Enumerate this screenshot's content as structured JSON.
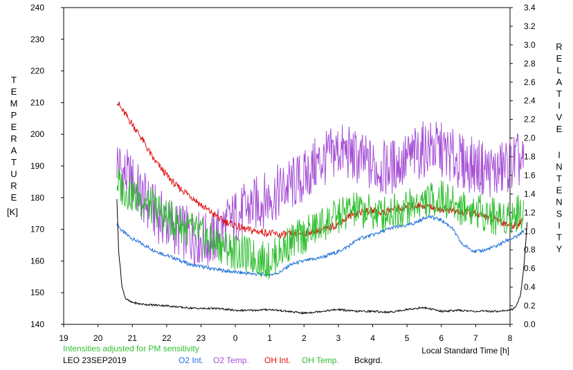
{
  "chart_data": {
    "type": "line",
    "left_axis_label": "TEMPERATURE",
    "left_axis_unit": "[K]",
    "right_axis_label": "RELATIVE INTENSITY",
    "xlabel": "Local Standard Time [h]",
    "note": "Intensities adjusted for PM sensitivity",
    "station": "LEO 23SEP2019",
    "x_range": [
      19,
      32
    ],
    "x_tick_values": [
      19,
      20,
      21,
      22,
      23,
      24,
      25,
      26,
      27,
      28,
      29,
      30,
      31,
      32
    ],
    "x_tick_labels": [
      "19",
      "20",
      "21",
      "22",
      "23",
      "0",
      "1",
      "2",
      "3",
      "4",
      "5",
      "6",
      "7",
      "8"
    ],
    "ylim_left": [
      140,
      240
    ],
    "y_left_ticks": [
      140,
      150,
      160,
      170,
      180,
      190,
      200,
      210,
      220,
      230,
      240
    ],
    "ylim_right": [
      0.0,
      3.4
    ],
    "y_right_ticks": [
      "0.0",
      "0.2",
      "0.4",
      "0.6",
      "0.8",
      "1.0",
      "1.2",
      "1.4",
      "1.6",
      "1.8",
      "2.0",
      "2.2",
      "2.4",
      "2.6",
      "2.8",
      "3.0",
      "3.2",
      "3.4"
    ],
    "grid": false,
    "series": [
      {
        "name": "O2 Int.",
        "axis": "right",
        "color": "#1e6fd9",
        "x": [
          20.55,
          20.7,
          21,
          21.3,
          21.6,
          22,
          22.3,
          22.7,
          23,
          23.3,
          23.6,
          24,
          24.3,
          24.6,
          25,
          25.3,
          25.6,
          26,
          26.3,
          26.6,
          27,
          27.3,
          27.6,
          28,
          28.3,
          28.6,
          29,
          29.3,
          29.6,
          30,
          30.3,
          30.6,
          31,
          31.3,
          31.6,
          31.9,
          32.2,
          32.4
        ],
        "y": [
          1.08,
          1.0,
          0.92,
          0.86,
          0.8,
          0.74,
          0.7,
          0.64,
          0.62,
          0.6,
          0.58,
          0.56,
          0.55,
          0.54,
          0.53,
          0.56,
          0.64,
          0.68,
          0.7,
          0.73,
          0.78,
          0.84,
          0.92,
          0.96,
          1.0,
          1.04,
          1.06,
          1.1,
          1.16,
          1.12,
          1.04,
          0.86,
          0.78,
          0.8,
          0.84,
          0.9,
          0.94,
          1.0
        ]
      },
      {
        "name": "O2 Temp.",
        "axis": "left",
        "color": "#a64fd6",
        "x": [
          20.55,
          20.7,
          21,
          21.3,
          21.6,
          22,
          22.3,
          22.7,
          23,
          23.3,
          23.6,
          24,
          24.3,
          24.6,
          25,
          25.3,
          25.6,
          26,
          26.3,
          26.6,
          27,
          27.3,
          27.6,
          28,
          28.3,
          28.6,
          29,
          29.3,
          29.6,
          30,
          30.3,
          30.6,
          31,
          31.3,
          31.6,
          31.9,
          32.2,
          32.4
        ],
        "y": [
          192,
          188,
          185,
          180,
          176,
          172,
          170,
          168,
          167,
          166,
          170,
          174,
          176,
          178,
          180,
          182,
          184,
          186,
          190,
          192,
          195,
          194,
          192,
          190,
          189,
          190,
          192,
          194,
          196,
          195,
          193,
          191,
          190,
          189,
          188,
          190,
          192,
          190
        ]
      },
      {
        "name": "OH Int.",
        "axis": "right",
        "color": "#e01010",
        "x": [
          20.55,
          20.7,
          21,
          21.3,
          21.6,
          22,
          22.3,
          22.7,
          23,
          23.3,
          23.6,
          24,
          24.3,
          24.6,
          25,
          25.3,
          25.6,
          26,
          26.3,
          26.6,
          27,
          27.3,
          27.6,
          28,
          28.3,
          28.6,
          29,
          29.3,
          29.6,
          30,
          30.3,
          30.6,
          31,
          31.3,
          31.6,
          31.9,
          32.2,
          32.4
        ],
        "y": [
          2.4,
          2.3,
          2.15,
          1.98,
          1.78,
          1.6,
          1.48,
          1.38,
          1.28,
          1.2,
          1.12,
          1.06,
          1.02,
          1.0,
          0.98,
          0.96,
          0.97,
          0.98,
          1.0,
          1.02,
          1.08,
          1.16,
          1.2,
          1.22,
          1.2,
          1.24,
          1.26,
          1.28,
          1.27,
          1.24,
          1.22,
          1.2,
          1.18,
          1.16,
          1.12,
          1.08,
          1.06,
          1.14
        ]
      },
      {
        "name": "OH Temp.",
        "axis": "left",
        "color": "#2fbf2f",
        "x": [
          20.55,
          20.7,
          21,
          21.3,
          21.6,
          22,
          22.3,
          22.7,
          23,
          23.3,
          23.6,
          24,
          24.3,
          24.6,
          25,
          25.3,
          25.6,
          26,
          26.3,
          26.6,
          27,
          27.3,
          27.6,
          28,
          28.3,
          28.6,
          29,
          29.3,
          29.6,
          30,
          30.3,
          30.6,
          31,
          31.3,
          31.6,
          31.9,
          32.2,
          32.4
        ],
        "y": [
          185,
          183,
          181,
          179,
          177,
          174,
          172,
          170,
          168,
          166,
          165,
          163,
          162,
          161,
          160,
          163,
          166,
          168,
          170,
          172,
          174,
          176,
          176,
          175,
          175,
          176,
          177,
          178,
          179,
          180,
          178,
          177,
          176,
          175,
          174,
          174,
          175,
          176
        ]
      },
      {
        "name": "Bckgrd.",
        "axis": "right",
        "color": "#000000",
        "x": [
          20.55,
          20.6,
          20.7,
          20.8,
          20.95,
          21.2,
          21.5,
          22,
          22.5,
          23,
          23.5,
          24,
          24.5,
          25,
          25.5,
          26,
          26.5,
          27,
          27.5,
          28,
          28.5,
          29,
          29.5,
          30,
          30.5,
          31,
          31.5,
          32,
          32.15,
          32.3,
          32.4,
          32.5
        ],
        "y": [
          1.35,
          0.8,
          0.4,
          0.28,
          0.24,
          0.22,
          0.21,
          0.2,
          0.18,
          0.17,
          0.17,
          0.15,
          0.15,
          0.16,
          0.14,
          0.12,
          0.14,
          0.16,
          0.14,
          0.14,
          0.13,
          0.16,
          0.18,
          0.14,
          0.15,
          0.14,
          0.14,
          0.15,
          0.18,
          0.3,
          0.6,
          1.1
        ]
      }
    ]
  }
}
